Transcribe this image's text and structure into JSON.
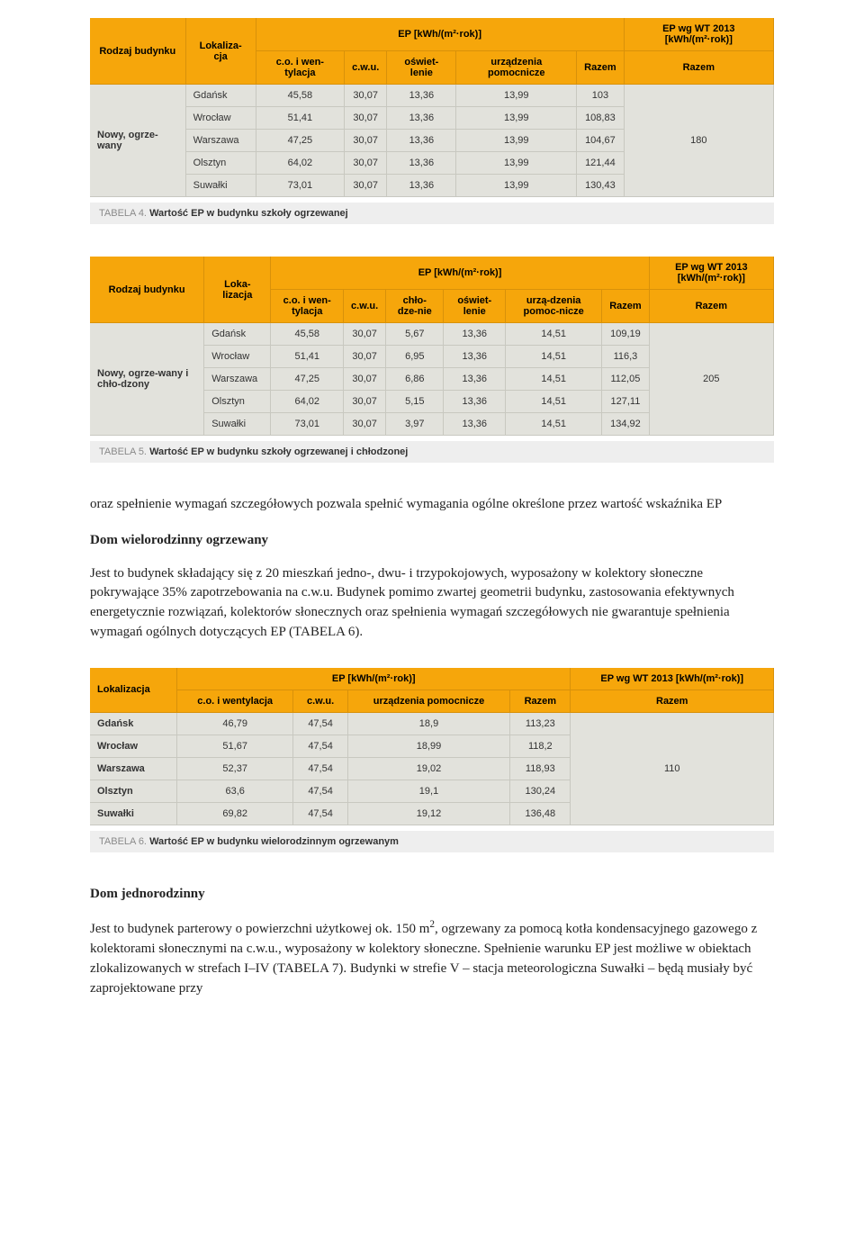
{
  "colors": {
    "header_bg": "#f6a60b",
    "cell_bg": "#e2e2dc",
    "caption_bg": "#eeeeee",
    "border": "#c8c8c0",
    "header_border": "#d8910a"
  },
  "table4": {
    "headers": {
      "rodzaj": "Rodzaj budynku",
      "lokal": "Lokaliza-cja",
      "ep_group": "EP [kWh/(m²·rok)]",
      "ep2013": "EP wg WT 2013 [kWh/(m²·rok)]",
      "c_o": "c.o. i wen-tylacja",
      "cwu": "c.w.u.",
      "osw": "oświet-lenie",
      "urz": "urządzenia pomocnicze",
      "razem": "Razem",
      "razem2": "Razem"
    },
    "rowlabel": "Nowy, ogrze-wany",
    "ep_total": "180",
    "rows": [
      {
        "city": "Gdańsk",
        "co": "45,58",
        "cwu": "30,07",
        "osw": "13,36",
        "urz": "13,99",
        "raz": "103"
      },
      {
        "city": "Wrocław",
        "co": "51,41",
        "cwu": "30,07",
        "osw": "13,36",
        "urz": "13,99",
        "raz": "108,83"
      },
      {
        "city": "Warszawa",
        "co": "47,25",
        "cwu": "30,07",
        "osw": "13,36",
        "urz": "13,99",
        "raz": "104,67"
      },
      {
        "city": "Olsztyn",
        "co": "64,02",
        "cwu": "30,07",
        "osw": "13,36",
        "urz": "13,99",
        "raz": "121,44"
      },
      {
        "city": "Suwałki",
        "co": "73,01",
        "cwu": "30,07",
        "osw": "13,36",
        "urz": "13,99",
        "raz": "130,43"
      }
    ],
    "caption_label": "TABELA 4.",
    "caption_text": "Wartość EP w budynku szkoły ogrzewanej"
  },
  "table5": {
    "headers": {
      "rodzaj": "Rodzaj budynku",
      "lokal": "Loka-lizacja",
      "ep_group": "EP [kWh/(m²·rok)]",
      "ep2013": "EP wg WT 2013 [kWh/(m²·rok)]",
      "c_o": "c.o. i wen-tylacja",
      "cwu": "c.w.u.",
      "chl": "chło-dze-nie",
      "osw": "oświet-lenie",
      "urz": "urzą-dzenia pomoc-nicze",
      "razem": "Razem",
      "razem2": "Razem"
    },
    "rowlabel": "Nowy, ogrze-wany i chło-dzony",
    "ep_total": "205",
    "rows": [
      {
        "city": "Gdańsk",
        "co": "45,58",
        "cwu": "30,07",
        "chl": "5,67",
        "osw": "13,36",
        "urz": "14,51",
        "raz": "109,19"
      },
      {
        "city": "Wrocław",
        "co": "51,41",
        "cwu": "30,07",
        "chl": "6,95",
        "osw": "13,36",
        "urz": "14,51",
        "raz": "116,3"
      },
      {
        "city": "Warszawa",
        "co": "47,25",
        "cwu": "30,07",
        "chl": "6,86",
        "osw": "13,36",
        "urz": "14,51",
        "raz": "112,05"
      },
      {
        "city": "Olsztyn",
        "co": "64,02",
        "cwu": "30,07",
        "chl": "5,15",
        "osw": "13,36",
        "urz": "14,51",
        "raz": "127,11"
      },
      {
        "city": "Suwałki",
        "co": "73,01",
        "cwu": "30,07",
        "chl": "3,97",
        "osw": "13,36",
        "urz": "14,51",
        "raz": "134,92"
      }
    ],
    "caption_label": "TABELA 5.",
    "caption_text": "Wartość EP w budynku szkoły ogrzewanej i chłodzonej"
  },
  "para1": {
    "line1": "oraz spełnienie wymagań szczegółowych pozwala spełnić wymagania ogólne określone przez wartość wskaźnika EP",
    "heading": "Dom wielorodzinny ogrzewany",
    "body": "Jest to budynek składający się z 20 mieszkań jedno-, dwu- i trzypokojowych, wyposażony w kolektory słoneczne pokrywające 35% zapotrzebowania na c.w.u. Budynek pomimo zwartej geometrii budynku, zastosowania efektywnych energetycznie rozwiązań, kolektorów słonecznych oraz spełnienia wymagań szczegółowych nie gwarantuje spełnienia wymagań ogólnych dotyczących EP (TABELA 6)."
  },
  "table6": {
    "headers": {
      "lokal": "Lokalizacja",
      "ep_group": "EP [kWh/(m²·rok)]",
      "ep2013": "EP wg WT 2013 [kWh/(m²·rok)]",
      "c_o": "c.o. i wentylacja",
      "cwu": "c.w.u.",
      "urz": "urządzenia pomocnicze",
      "razem": "Razem",
      "razem2": "Razem"
    },
    "ep_total": "110",
    "rows": [
      {
        "city": "Gdańsk",
        "co": "46,79",
        "cwu": "47,54",
        "urz": "18,9",
        "raz": "113,23"
      },
      {
        "city": "Wrocław",
        "co": "51,67",
        "cwu": "47,54",
        "urz": "18,99",
        "raz": "118,2"
      },
      {
        "city": "Warszawa",
        "co": "52,37",
        "cwu": "47,54",
        "urz": "19,02",
        "raz": "118,93"
      },
      {
        "city": "Olsztyn",
        "co": "63,6",
        "cwu": "47,54",
        "urz": "19,1",
        "raz": "130,24"
      },
      {
        "city": "Suwałki",
        "co": "69,82",
        "cwu": "47,54",
        "urz": "19,12",
        "raz": "136,48"
      }
    ],
    "caption_label": "TABELA 6.",
    "caption_text": "Wartość EP w budynku wielorodzinnym ogrzewanym"
  },
  "para2": {
    "heading": "Dom jednorodzinny",
    "body_a": "Jest to budynek parterowy o powierzchni użytkowej ok. 150 m",
    "body_b": ", ogrzewany za pomocą kotła kondensacyjnego gazowego z kolektorami słonecznymi na c.w.u., wyposażony w kolektory słoneczne. Spełnienie warunku EP jest możliwe w obiektach zlokalizowanych w strefach I–IV (TABELA 7). Budynki w strefie V – stacja meteorologiczna Suwałki – będą musiały być zaprojektowane przy",
    "sup": "2"
  }
}
